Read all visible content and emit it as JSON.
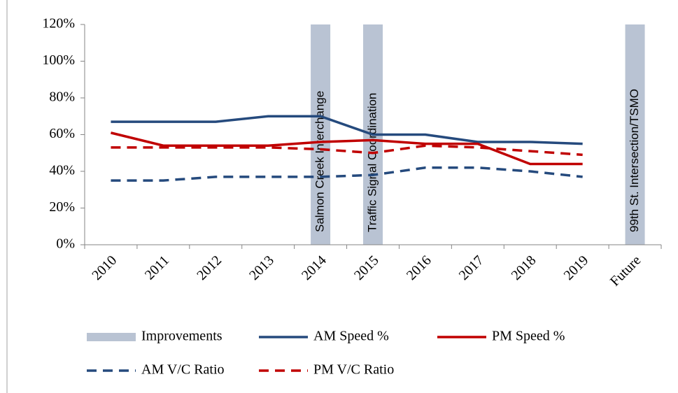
{
  "chart_data": {
    "type": "line",
    "categories": [
      "2010",
      "2011",
      "2012",
      "2013",
      "2014",
      "2015",
      "2016",
      "2017",
      "2018",
      "2019",
      "Future"
    ],
    "ylim": [
      0,
      120
    ],
    "yticks": [
      {
        "value": 0,
        "label": "0%"
      },
      {
        "value": 20,
        "label": "20%"
      },
      {
        "value": 40,
        "label": "40%"
      },
      {
        "value": 60,
        "label": "60%"
      },
      {
        "value": 80,
        "label": "80%"
      },
      {
        "value": 100,
        "label": "100%"
      },
      {
        "value": 120,
        "label": "120%"
      }
    ],
    "series": [
      {
        "name": "Improvements",
        "color": "#b9c3d3",
        "style": "bar",
        "values": [
          null,
          null,
          null,
          null,
          120,
          120,
          null,
          null,
          null,
          null,
          120
        ]
      },
      {
        "name": "AM Speed %",
        "color": "#254a7d",
        "style": "solid",
        "values": [
          67,
          67,
          67,
          70,
          70,
          60,
          60,
          56,
          56,
          55,
          null
        ]
      },
      {
        "name": "PM Speed %",
        "color": "#c00000",
        "style": "solid",
        "values": [
          61,
          54,
          54,
          54,
          56,
          57,
          55,
          55,
          44,
          44,
          null
        ]
      },
      {
        "name": "AM V/C Ratio",
        "color": "#254a7d",
        "style": "dashed",
        "values": [
          35,
          35,
          37,
          37,
          37,
          38,
          42,
          42,
          40,
          37,
          null
        ]
      },
      {
        "name": "PM V/C Ratio",
        "color": "#c00000",
        "style": "dashed",
        "values": [
          53,
          53,
          53,
          53,
          52,
          50,
          54,
          53,
          51,
          49,
          null
        ]
      }
    ],
    "annotations": [
      {
        "x": "2014",
        "text": "Salmon Creek Interchange"
      },
      {
        "x": "2015",
        "text": "Traffic Signal Coordination"
      },
      {
        "x": "Future",
        "text": "99th St. Intersection/TSMO"
      }
    ],
    "legend": "bottom"
  }
}
